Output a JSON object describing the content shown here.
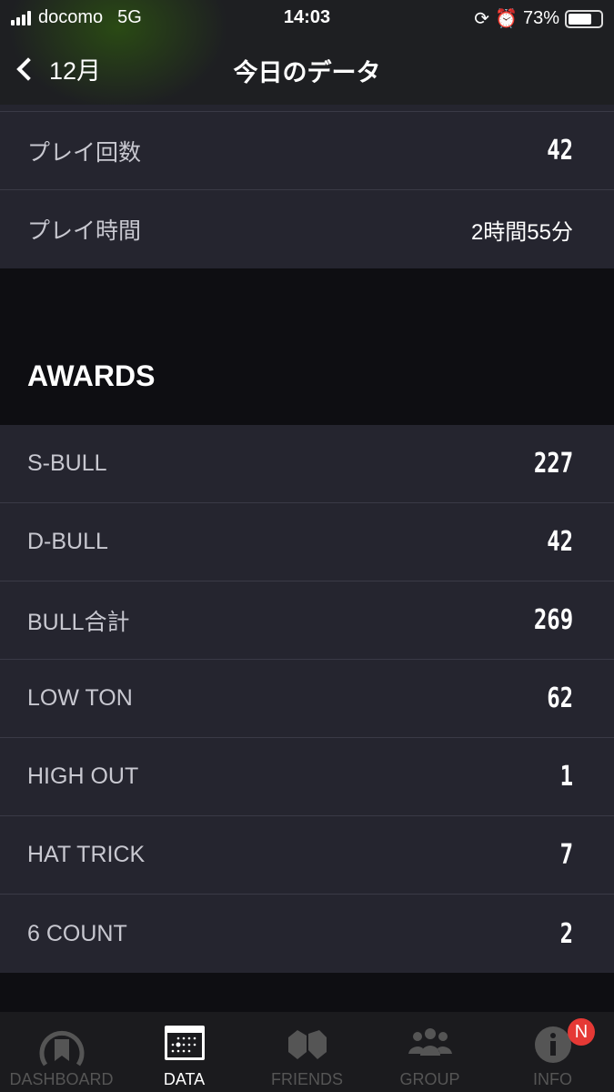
{
  "status": {
    "carrier": "docomo",
    "network": "5G",
    "time": "14:03",
    "battery": "73%",
    "battery_level": 0.73
  },
  "nav": {
    "back_label": "12月",
    "title": "今日のデータ"
  },
  "summary": [
    {
      "label": "プレイ回数",
      "value": "42"
    },
    {
      "label": "プレイ時間",
      "value": "2時間55分"
    }
  ],
  "awards": {
    "heading": "AWARDS",
    "items": [
      {
        "label": "S-BULL",
        "value": "227"
      },
      {
        "label": "D-BULL",
        "value": "42"
      },
      {
        "label": "BULL合計",
        "value": "269"
      },
      {
        "label": "LOW TON",
        "value": "62"
      },
      {
        "label": "HIGH OUT",
        "value": "1"
      },
      {
        "label": "HAT TRICK",
        "value": "7"
      },
      {
        "label": "6 COUNT",
        "value": "2"
      }
    ]
  },
  "tabs": [
    {
      "label": "DASHBOARD",
      "icon": "gauge-icon"
    },
    {
      "label": "DATA",
      "icon": "calendar-icon",
      "active": true
    },
    {
      "label": "FRIENDS",
      "icon": "fist-bump-icon"
    },
    {
      "label": "GROUP",
      "icon": "group-icon"
    },
    {
      "label": "INFO",
      "icon": "info-icon",
      "badge": "N"
    }
  ]
}
